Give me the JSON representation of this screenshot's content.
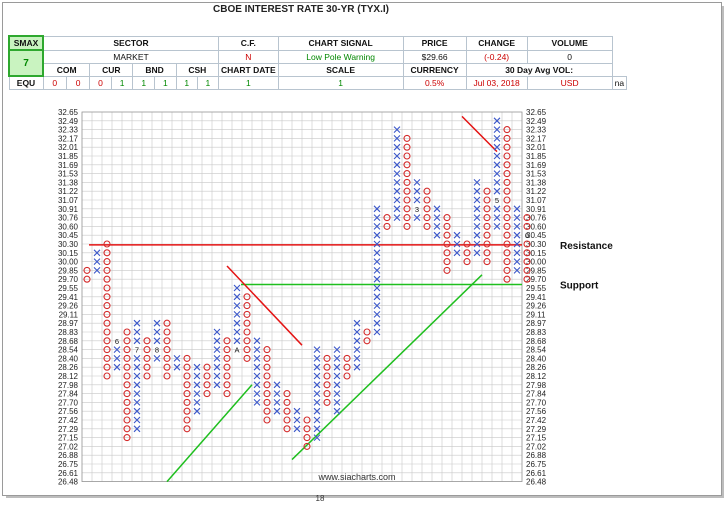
{
  "header": {
    "title": "CBOE INTEREST RATE 30-YR (TYX.I)",
    "smax_label": "SMAX",
    "smax_value": "7",
    "sector_label": "SECTOR",
    "sector_value": "MARKET",
    "cf_label": "C.F.",
    "cf_value": "N",
    "chart_signal_label": "CHART SIGNAL",
    "chart_signal_value": "Low Pole Warning",
    "price_label": "PRICE",
    "price_value": "$29.66",
    "change_label": "CHANGE",
    "change_value": "(-0.24)",
    "volume_label": "VOLUME",
    "volume_value": "0",
    "equ_label": "EQU",
    "com_label": "COM",
    "cur_label": "CUR",
    "bnd_label": "BND",
    "csh_label": "CSH",
    "scale_label": "SCALE",
    "equ_values": [
      "0",
      "0"
    ],
    "com_values": [
      "0",
      "1"
    ],
    "cur_values": [
      "1",
      "1"
    ],
    "bnd_values": [
      "1",
      "1"
    ],
    "csh_values": [
      "1",
      "1"
    ],
    "scale_value": "0.5%",
    "chart_date_label": "CHART DATE",
    "chart_date_value": "Jul 03, 2018",
    "currency_label": "CURRENCY",
    "currency_value": "USD",
    "avg_vol_label": "30 Day Avg VOL:",
    "avg_vol_value": "na"
  },
  "chart_data": {
    "type": "point-and-figure",
    "y_ticks": [
      "32.65",
      "32.49",
      "32.33",
      "32.17",
      "32.01",
      "31.85",
      "31.69",
      "31.53",
      "31.38",
      "31.22",
      "31.07",
      "30.91",
      "30.76",
      "30.60",
      "30.45",
      "30.30",
      "30.15",
      "30.00",
      "29.85",
      "29.70",
      "29.55",
      "29.41",
      "29.26",
      "29.11",
      "28.97",
      "28.83",
      "28.68",
      "28.54",
      "28.40",
      "28.26",
      "28.12",
      "27.98",
      "27.84",
      "27.70",
      "27.56",
      "27.42",
      "27.29",
      "27.15",
      "27.02",
      "26.88",
      "26.75",
      "26.61",
      "26.48"
    ],
    "columns": [
      {
        "type": "O",
        "start": 18,
        "end": 19
      },
      {
        "type": "X",
        "start": 16,
        "end": 18
      },
      {
        "type": "O",
        "start": 15,
        "end": 30
      },
      {
        "type": "X",
        "start": 26,
        "end": 29
      },
      {
        "type": "O",
        "start": 25,
        "end": 37
      },
      {
        "type": "X",
        "start": 24,
        "end": 36
      },
      {
        "type": "O",
        "start": 26,
        "end": 30
      },
      {
        "type": "X",
        "start": 24,
        "end": 28
      },
      {
        "type": "O",
        "start": 24,
        "end": 30
      },
      {
        "type": "X",
        "start": 28,
        "end": 29
      },
      {
        "type": "O",
        "start": 28,
        "end": 36
      },
      {
        "type": "X",
        "start": 29,
        "end": 34
      },
      {
        "type": "O",
        "start": 29,
        "end": 32
      },
      {
        "type": "X",
        "start": 25,
        "end": 31
      },
      {
        "type": "O",
        "start": 26,
        "end": 32
      },
      {
        "type": "X",
        "start": 20,
        "end": 27
      },
      {
        "type": "O",
        "start": 21,
        "end": 28
      },
      {
        "type": "X",
        "start": 26,
        "end": 33
      },
      {
        "type": "O",
        "start": 27,
        "end": 35
      },
      {
        "type": "X",
        "start": 31,
        "end": 34
      },
      {
        "type": "O",
        "start": 32,
        "end": 36
      },
      {
        "type": "X",
        "start": 34,
        "end": 36
      },
      {
        "type": "O",
        "start": 35,
        "end": 38
      },
      {
        "type": "X",
        "start": 27,
        "end": 37
      },
      {
        "type": "O",
        "start": 28,
        "end": 33
      },
      {
        "type": "X",
        "start": 27,
        "end": 34
      },
      {
        "type": "O",
        "start": 28,
        "end": 30
      },
      {
        "type": "X",
        "start": 24,
        "end": 29
      },
      {
        "type": "O",
        "start": 25,
        "end": 26
      },
      {
        "type": "X",
        "start": 11,
        "end": 25
      },
      {
        "type": "O",
        "start": 12,
        "end": 13
      },
      {
        "type": "X",
        "start": 2,
        "end": 12
      },
      {
        "type": "O",
        "start": 3,
        "end": 13
      },
      {
        "type": "X",
        "start": 8,
        "end": 12
      },
      {
        "type": "O",
        "start": 9,
        "end": 13
      },
      {
        "type": "X",
        "start": 11,
        "end": 14
      },
      {
        "type": "O",
        "start": 12,
        "end": 18
      },
      {
        "type": "X",
        "start": 14,
        "end": 16
      },
      {
        "type": "O",
        "start": 15,
        "end": 17
      },
      {
        "type": "X",
        "start": 8,
        "end": 16
      },
      {
        "type": "O",
        "start": 9,
        "end": 17
      },
      {
        "type": "X",
        "start": 1,
        "end": 13
      },
      {
        "type": "O",
        "start": 2,
        "end": 19
      },
      {
        "type": "X",
        "start": 11,
        "end": 18
      },
      {
        "type": "O",
        "start": 12,
        "end": 19
      }
    ],
    "markers": [
      {
        "col": 3,
        "row": 26,
        "label": "6"
      },
      {
        "col": 5,
        "row": 27,
        "label": "7"
      },
      {
        "col": 7,
        "row": 27,
        "label": "8"
      },
      {
        "col": 12,
        "row": 35,
        "label": "9"
      },
      {
        "col": 15,
        "row": 27,
        "label": "A"
      },
      {
        "col": 19,
        "row": 27,
        "label": "B"
      },
      {
        "col": 22,
        "row": 34,
        "label": "C"
      },
      {
        "col": 27,
        "row": 32,
        "label": "1"
      },
      {
        "col": 31,
        "row": 17,
        "label": "2"
      },
      {
        "col": 33,
        "row": 11,
        "label": "3"
      },
      {
        "col": 37,
        "row": 19,
        "label": "4"
      },
      {
        "col": 41,
        "row": 10,
        "label": "5"
      },
      {
        "col": 44,
        "row": 14,
        "label": "6"
      },
      {
        "col": 45,
        "row": 18,
        "label": "7"
      }
    ],
    "annotations": {
      "resistance_label": "Resistance",
      "support_label": "Support",
      "watermark": "www.siacharts.com",
      "page_number": "18"
    },
    "colors": {
      "x_mark": "#3b57c9",
      "o_mark": "#d42b2b",
      "resistance_line": "#e41414",
      "support_line": "#1fbf1f",
      "trend_down": "#e41414",
      "trend_up": "#1fbf1f",
      "grid": "#c8c8c8"
    }
  }
}
